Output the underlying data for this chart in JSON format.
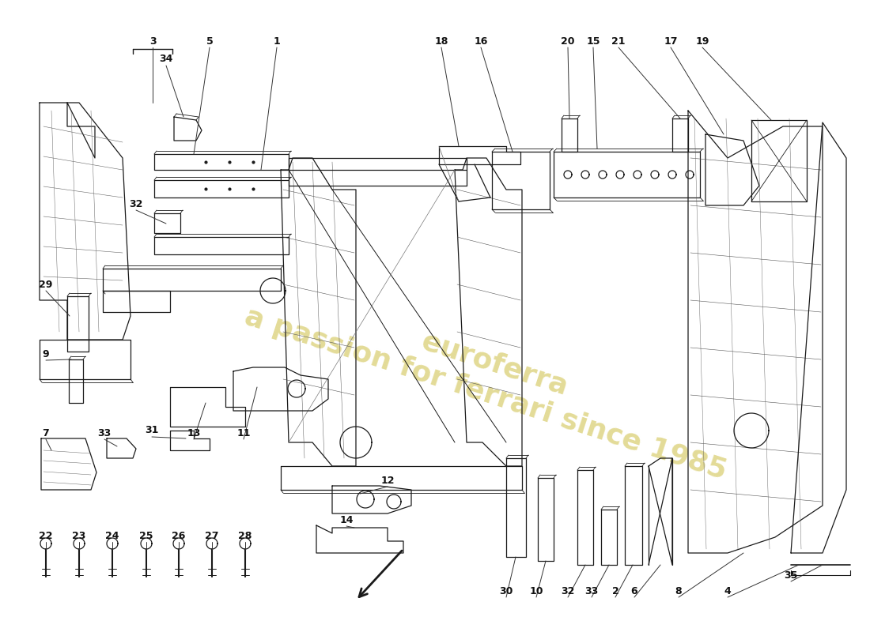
{
  "bg": "#ffffff",
  "lc": "#1a1a1a",
  "lw": 0.9,
  "wm_color": "#c8b830",
  "wm_alpha": 0.5,
  "label_fs": 9,
  "label_fw": "bold"
}
